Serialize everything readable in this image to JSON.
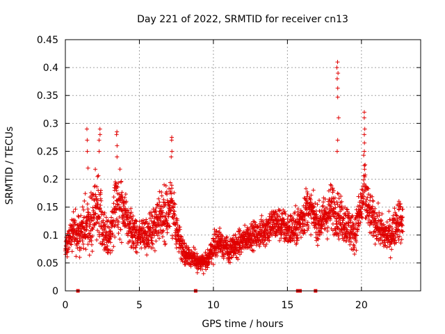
{
  "chart_data": {
    "type": "scatter",
    "title": "Day 221 of 2022, SRMTID for receiver cn13",
    "xlabel": "GPS time / hours",
    "ylabel": "SRMTID / TECUs",
    "xlim": [
      0,
      24
    ],
    "ylim": [
      0,
      0.45
    ],
    "x_ticks": [
      0,
      5,
      10,
      15,
      20
    ],
    "x_tick_labels": [
      "0",
      "5",
      "10",
      "15",
      "20"
    ],
    "y_ticks": [
      0,
      0.05,
      0.1,
      0.15,
      0.2,
      0.25,
      0.3,
      0.35,
      0.4,
      0.45
    ],
    "y_tick_labels": [
      "0",
      "0.05",
      "0.1",
      "0.15",
      "0.2",
      "0.25",
      "0.3",
      "0.35",
      "0.4",
      "0.45"
    ],
    "grid": true,
    "marker": "+",
    "color": "#e00000",
    "series": [
      {
        "name": "SRMTID",
        "envelope_x": [
          0,
          0.5,
          1,
          1.5,
          2,
          2.3,
          2.7,
          3,
          3.4,
          3.8,
          4.3,
          5,
          5.6,
          6.2,
          6.8,
          7.2,
          7.6,
          8,
          8.5,
          9,
          9.5,
          10,
          10.5,
          11,
          11.5,
          12,
          12.5,
          13,
          13.5,
          14,
          14.5,
          15,
          15.5,
          16,
          16.3,
          16.7,
          17,
          17.5,
          18,
          18.3,
          18.6,
          19,
          19.5,
          20,
          20.2,
          20.5,
          21,
          21.5,
          22,
          22.5,
          23
        ],
        "envelope_median": [
          0.08,
          0.11,
          0.1,
          0.12,
          0.14,
          0.15,
          0.1,
          0.09,
          0.16,
          0.15,
          0.11,
          0.1,
          0.1,
          0.13,
          0.14,
          0.15,
          0.1,
          0.07,
          0.06,
          0.05,
          0.05,
          0.08,
          0.09,
          0.07,
          0.08,
          0.09,
          0.1,
          0.1,
          0.11,
          0.12,
          0.12,
          0.11,
          0.11,
          0.13,
          0.15,
          0.14,
          0.12,
          0.13,
          0.15,
          0.14,
          0.13,
          0.12,
          0.1,
          0.15,
          0.18,
          0.14,
          0.12,
          0.1,
          0.1,
          0.13,
          0.11
        ],
        "envelope_spread": [
          0.03,
          0.04,
          0.05,
          0.07,
          0.07,
          0.07,
          0.04,
          0.04,
          0.07,
          0.06,
          0.04,
          0.04,
          0.04,
          0.05,
          0.06,
          0.06,
          0.04,
          0.03,
          0.02,
          0.02,
          0.02,
          0.03,
          0.03,
          0.03,
          0.03,
          0.03,
          0.03,
          0.03,
          0.04,
          0.04,
          0.04,
          0.04,
          0.04,
          0.05,
          0.05,
          0.04,
          0.04,
          0.05,
          0.06,
          0.05,
          0.05,
          0.05,
          0.04,
          0.06,
          0.08,
          0.05,
          0.04,
          0.04,
          0.04,
          0.05,
          0.04
        ],
        "x_start": 0,
        "x_end": 22.8,
        "x_step": 0.0085,
        "peaks": [
          {
            "x": 1.5,
            "values": [
              0.29,
              0.27,
              0.25,
              0.22
            ]
          },
          {
            "x": 2.3,
            "values": [
              0.29,
              0.28,
              0.27,
              0.25
            ]
          },
          {
            "x": 3.5,
            "values": [
              0.285,
              0.28,
              0.26,
              0.24
            ]
          },
          {
            "x": 7.2,
            "values": [
              0.275,
              0.27,
              0.25,
              0.24
            ]
          },
          {
            "x": 18.4,
            "values": [
              0.41,
              0.4,
              0.39,
              0.38,
              0.363,
              0.347,
              0.31,
              0.27,
              0.25
            ]
          },
          {
            "x": 20.2,
            "values": [
              0.32,
              0.31,
              0.29,
              0.28,
              0.265,
              0.25
            ]
          }
        ],
        "zeros_x": [
          0.85,
          8.8,
          15.7,
          15.85,
          16.9
        ]
      }
    ]
  }
}
